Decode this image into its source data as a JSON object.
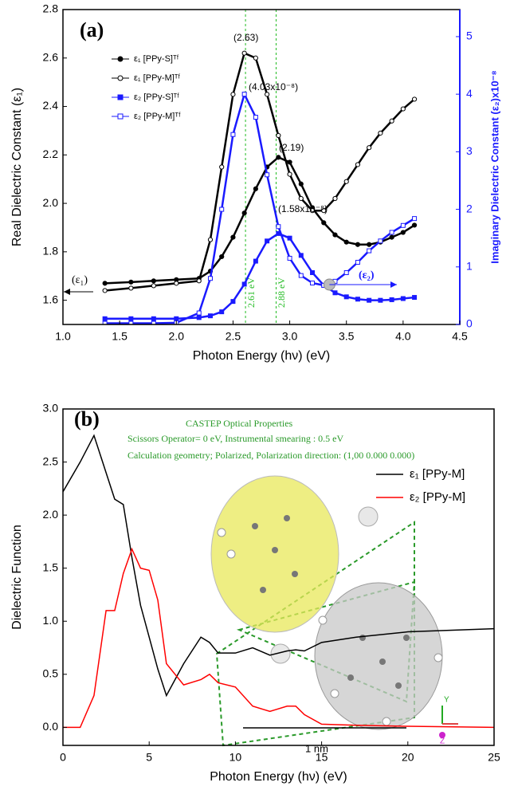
{
  "chart_data": [
    {
      "type": "line",
      "xlabel": "Photon Energy (hν) (eV)",
      "ylabel": "Real Dielectric Constant (ε₁)",
      "y2label": "Imaginary Dielectric Constant (ε₂)x10⁻⁸",
      "xlim": [
        1.0,
        4.5
      ],
      "ylim": [
        1.5,
        2.8
      ],
      "y2lim": [
        0,
        5.47
      ],
      "xticks": [
        {
          "value": 1,
          "label": "1.0"
        },
        1.5,
        {
          "value": 2,
          "label": "2.0"
        },
        2.5,
        {
          "value": 3,
          "label": "3.0"
        },
        3.5,
        {
          "value": 4,
          "label": "4.0"
        },
        4.5
      ],
      "yticks": [
        1.6,
        1.8,
        {
          "value": 2,
          "label": "2.0"
        },
        2.2,
        2.4,
        2.6,
        2.8
      ],
      "y2ticks": [
        0,
        1,
        2,
        3,
        4,
        5
      ],
      "y2color": "#1a1aff",
      "x": [
        1.37,
        1.6,
        1.8,
        2.0,
        2.2,
        2.3,
        2.4,
        2.5,
        2.6,
        2.7,
        2.8,
        2.9,
        3.0,
        3.1,
        3.2,
        3.3,
        3.4,
        3.5,
        3.6,
        3.7,
        3.8,
        3.9,
        4.0,
        4.1
      ],
      "series": [
        {
          "name": "ε₁ [PPy-S]ᵀᶠ",
          "color": "#000000",
          "marker": "circle-filled",
          "values": [
            1.67,
            1.675,
            1.68,
            1.685,
            1.69,
            1.72,
            1.78,
            1.86,
            1.96,
            2.06,
            2.15,
            2.19,
            2.17,
            2.08,
            1.98,
            1.92,
            1.87,
            1.84,
            1.83,
            1.83,
            1.84,
            1.86,
            1.88,
            1.91
          ]
        },
        {
          "name": "ε₁ [PPy-M]ᵀᶠ",
          "color": "#000000",
          "marker": "circle-open",
          "values": [
            1.64,
            1.65,
            1.66,
            1.67,
            1.68,
            1.85,
            2.15,
            2.45,
            2.62,
            2.6,
            2.45,
            2.28,
            2.12,
            2.02,
            1.97,
            1.97,
            2.02,
            2.09,
            2.16,
            2.23,
            2.29,
            2.34,
            2.39,
            2.43
          ]
        },
        {
          "name": "ε₂ [PPy-S]ᵀᶠ",
          "color": "#1a1aff",
          "marker": "square-filled",
          "axis": "y2",
          "values": [
            0.1,
            0.1,
            0.1,
            0.1,
            0.12,
            0.15,
            0.22,
            0.4,
            0.7,
            1.1,
            1.45,
            1.58,
            1.5,
            1.2,
            0.9,
            0.68,
            0.55,
            0.48,
            0.44,
            0.42,
            0.42,
            0.43,
            0.45,
            0.47
          ]
        },
        {
          "name": "ε₂ [PPy-M]ᵀᶠ",
          "color": "#1a1aff",
          "marker": "square-open",
          "axis": "y2",
          "values": [
            0.02,
            0.02,
            0.02,
            0.03,
            0.2,
            0.8,
            2.0,
            3.3,
            4.0,
            3.6,
            2.6,
            1.7,
            1.15,
            0.85,
            0.72,
            0.68,
            0.75,
            0.9,
            1.08,
            1.28,
            1.45,
            1.6,
            1.72,
            1.84
          ]
        }
      ],
      "vlines": [
        {
          "value": 2.61,
          "label": "2.61 eV"
        },
        {
          "value": 2.88,
          "label": "2.88 eV"
        }
      ],
      "vline_color": "#22bb22",
      "annotations": [
        "(a)",
        "(2.63)",
        "(4.03x10⁻⁸)",
        "(2.19)",
        "(1.58x10⁻⁸)",
        "(ε₁)",
        "(ε₂)"
      ]
    },
    {
      "type": "line",
      "xlabel": "Photon Energy (hν) (eV)",
      "ylabel": "Dielectric Function",
      "xlim": [
        0,
        25
      ],
      "ylim": [
        -0.17,
        3.0
      ],
      "xticks": [
        0,
        5,
        10,
        15,
        20,
        25
      ],
      "yticks": [
        {
          "value": 0,
          "label": "0.0"
        },
        0.5,
        {
          "value": 1,
          "label": "1.0"
        },
        1.5,
        {
          "value": 2,
          "label": "2.0"
        },
        2.5,
        {
          "value": 3,
          "label": "3.0"
        }
      ],
      "x": [
        0,
        1,
        1.8,
        2.5,
        3,
        3.5,
        4,
        4.5,
        5,
        5.5,
        6,
        7,
        8,
        8.5,
        9,
        10,
        11,
        12,
        13,
        13.5,
        14,
        15,
        17,
        20,
        25
      ],
      "series": [
        {
          "name": "ε₁ [PPy-M]",
          "color": "#000000",
          "values": [
            2.22,
            2.5,
            2.75,
            2.4,
            2.15,
            2.1,
            1.6,
            1.15,
            0.85,
            0.55,
            0.3,
            0.6,
            0.85,
            0.8,
            0.7,
            0.7,
            0.75,
            0.68,
            0.72,
            0.73,
            0.72,
            0.8,
            0.85,
            0.9,
            0.93
          ]
        },
        {
          "name": "ε₂ [PPy-M]",
          "color": "#ff0000",
          "values": [
            0,
            0,
            0.3,
            1.1,
            1.1,
            1.45,
            1.68,
            1.5,
            1.48,
            1.2,
            0.6,
            0.4,
            0.45,
            0.5,
            0.42,
            0.38,
            0.2,
            0.15,
            0.2,
            0.2,
            0.12,
            0.03,
            0.02,
            0.01,
            0
          ]
        }
      ],
      "annotations": [
        "(b)",
        "CASTEP Optical Properties",
        "Scissors Operator= 0 eV, Instrumental smearing : 0.5 eV",
        "Calculation geometry; Polarized, Polarization direction: (1,00 0.000 0.000)",
        "1 nm",
        "Y",
        "Z"
      ]
    }
  ]
}
